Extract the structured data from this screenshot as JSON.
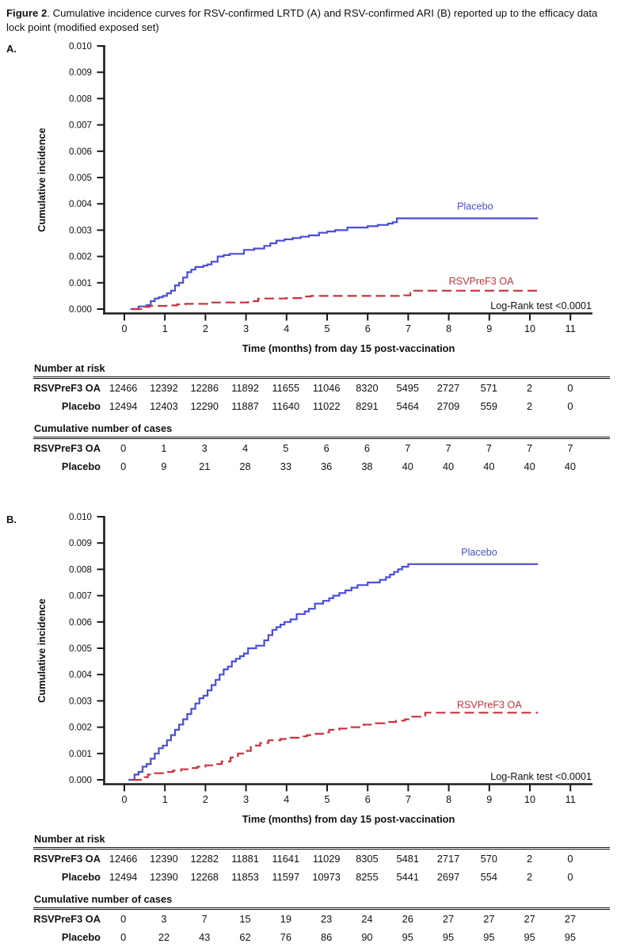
{
  "figure_title": {
    "bold": "Figure 2",
    "rest": ". Cumulative incidence curves for RSV-confirmed LRTD (A) and RSV-confirmed ARI (B) reported up to the efficacy data lock point (modified exposed set)"
  },
  "colors": {
    "placebo_blue": "#4a4ed7",
    "vaccine_red": "#c8323e",
    "axis_black": "#1a1a1a"
  },
  "chart_data": [
    {
      "id": "a",
      "panel_label": "A.",
      "type": "line",
      "subtype": "step-cumulative-incidence",
      "xlabel": "Time (months) from day 15 post-vaccination",
      "ylabel": "Cumulative incidence",
      "xlim": [
        0,
        11
      ],
      "ylim": [
        0,
        0.01
      ],
      "xticks": [
        0,
        1,
        2,
        3,
        4,
        5,
        6,
        7,
        8,
        9,
        10,
        11
      ],
      "yticks": [
        "0.000",
        "0.001",
        "0.002",
        "0.003",
        "0.004",
        "0.005",
        "0.006",
        "0.007",
        "0.008",
        "0.009",
        "0.010"
      ],
      "annotation": "Log-Rank test <0.0001",
      "grid": false,
      "series": [
        {
          "name": "Placebo",
          "style": "solid",
          "color": "#4a4ed7",
          "label_at": {
            "x": 8.65,
            "y": 0.0039
          },
          "steps": [
            [
              0.15,
              0
            ],
            [
              0.35,
              0.0001
            ],
            [
              0.55,
              0.00015
            ],
            [
              0.65,
              0.0003
            ],
            [
              0.75,
              0.0004
            ],
            [
              0.85,
              0.00045
            ],
            [
              0.95,
              0.0005
            ],
            [
              1.05,
              0.0006
            ],
            [
              1.15,
              0.0007
            ],
            [
              1.25,
              0.0009
            ],
            [
              1.35,
              0.001
            ],
            [
              1.45,
              0.0012
            ],
            [
              1.55,
              0.0014
            ],
            [
              1.65,
              0.0015
            ],
            [
              1.75,
              0.0016
            ],
            [
              1.95,
              0.00165
            ],
            [
              2.05,
              0.0017
            ],
            [
              2.15,
              0.0018
            ],
            [
              2.3,
              0.002
            ],
            [
              2.45,
              0.00205
            ],
            [
              2.6,
              0.0021
            ],
            [
              2.95,
              0.00225
            ],
            [
              3.2,
              0.0023
            ],
            [
              3.45,
              0.0024
            ],
            [
              3.6,
              0.0025
            ],
            [
              3.75,
              0.0026
            ],
            [
              3.95,
              0.00265
            ],
            [
              4.15,
              0.0027
            ],
            [
              4.35,
              0.00275
            ],
            [
              4.55,
              0.0028
            ],
            [
              4.8,
              0.0029
            ],
            [
              5.0,
              0.00295
            ],
            [
              5.2,
              0.003
            ],
            [
              5.5,
              0.0031
            ],
            [
              6.0,
              0.00315
            ],
            [
              6.25,
              0.0032
            ],
            [
              6.5,
              0.00325
            ],
            [
              6.62,
              0.0033
            ],
            [
              6.72,
              0.00345
            ],
            [
              10.2,
              0.00345
            ]
          ]
        },
        {
          "name": "RSVPreF3 OA",
          "style": "dashed",
          "color": "#c8323e",
          "label_at": {
            "x": 8.8,
            "y": 0.00105
          },
          "steps": [
            [
              0.2,
              0
            ],
            [
              0.5,
              8e-05
            ],
            [
              0.62,
              0.00012
            ],
            [
              1.1,
              0.00014
            ],
            [
              1.3,
              0.00018
            ],
            [
              1.5,
              0.0002
            ],
            [
              2.1,
              0.00025
            ],
            [
              3.05,
              0.0003
            ],
            [
              3.3,
              0.0004
            ],
            [
              4.0,
              0.00042
            ],
            [
              4.45,
              0.00048
            ],
            [
              4.6,
              0.0005
            ],
            [
              6.9,
              0.00052
            ],
            [
              7.05,
              0.0007
            ],
            [
              10.2,
              0.0007
            ]
          ]
        }
      ],
      "tables": [
        {
          "heading": "Number at risk",
          "rows": [
            {
              "label": "RSVPreF3 OA",
              "values": [
                "12466",
                "12392",
                "12286",
                "11892",
                "11655",
                "11046",
                "8320",
                "5495",
                "2727",
                "571",
                "2",
                "0"
              ]
            },
            {
              "label": "Placebo",
              "values": [
                "12494",
                "12403",
                "12290",
                "11887",
                "11640",
                "11022",
                "8291",
                "5464",
                "2709",
                "559",
                "2",
                "0"
              ]
            }
          ]
        },
        {
          "heading": "Cumulative number of cases",
          "rows": [
            {
              "label": "RSVPreF3 OA",
              "values": [
                "0",
                "1",
                "3",
                "4",
                "5",
                "6",
                "6",
                "7",
                "7",
                "7",
                "7",
                "7"
              ]
            },
            {
              "label": "Placebo",
              "values": [
                "0",
                "9",
                "21",
                "28",
                "33",
                "36",
                "38",
                "40",
                "40",
                "40",
                "40",
                "40"
              ]
            }
          ]
        }
      ]
    },
    {
      "id": "b",
      "panel_label": "B.",
      "type": "line",
      "subtype": "step-cumulative-incidence",
      "xlabel": "Time (months) from day 15 post-vaccination",
      "ylabel": "Cumulative incidence",
      "xlim": [
        0,
        11
      ],
      "ylim": [
        0,
        0.01
      ],
      "xticks": [
        0,
        1,
        2,
        3,
        4,
        5,
        6,
        7,
        8,
        9,
        10,
        11
      ],
      "yticks": [
        "0.000",
        "0.001",
        "0.002",
        "0.003",
        "0.004",
        "0.005",
        "0.006",
        "0.007",
        "0.008",
        "0.009",
        "0.010"
      ],
      "annotation": "Log-Rank test <0.0001",
      "grid": false,
      "series": [
        {
          "name": "Placebo",
          "style": "solid",
          "color": "#4a4ed7",
          "label_at": {
            "x": 8.75,
            "y": 0.00865
          },
          "steps": [
            [
              0.1,
              0
            ],
            [
              0.25,
              0.0002
            ],
            [
              0.35,
              0.0003
            ],
            [
              0.45,
              0.0005
            ],
            [
              0.55,
              0.0006
            ],
            [
              0.65,
              0.0008
            ],
            [
              0.75,
              0.001
            ],
            [
              0.85,
              0.0012
            ],
            [
              0.95,
              0.0013
            ],
            [
              1.05,
              0.0015
            ],
            [
              1.15,
              0.0017
            ],
            [
              1.25,
              0.0019
            ],
            [
              1.35,
              0.0021
            ],
            [
              1.45,
              0.0023
            ],
            [
              1.55,
              0.0025
            ],
            [
              1.65,
              0.0027
            ],
            [
              1.75,
              0.0029
            ],
            [
              1.85,
              0.0031
            ],
            [
              1.95,
              0.0032
            ],
            [
              2.05,
              0.0034
            ],
            [
              2.15,
              0.0036
            ],
            [
              2.25,
              0.0038
            ],
            [
              2.35,
              0.004
            ],
            [
              2.45,
              0.0042
            ],
            [
              2.55,
              0.0043
            ],
            [
              2.65,
              0.0045
            ],
            [
              2.75,
              0.0046
            ],
            [
              2.85,
              0.0047
            ],
            [
              2.95,
              0.0048
            ],
            [
              3.05,
              0.005
            ],
            [
              3.25,
              0.0051
            ],
            [
              3.45,
              0.0053
            ],
            [
              3.55,
              0.0055
            ],
            [
              3.65,
              0.0057
            ],
            [
              3.75,
              0.0058
            ],
            [
              3.85,
              0.0059
            ],
            [
              3.95,
              0.006
            ],
            [
              4.1,
              0.0061
            ],
            [
              4.25,
              0.0063
            ],
            [
              4.45,
              0.0064
            ],
            [
              4.55,
              0.0065
            ],
            [
              4.7,
              0.0067
            ],
            [
              4.9,
              0.0068
            ],
            [
              5.05,
              0.0069
            ],
            [
              5.15,
              0.007
            ],
            [
              5.3,
              0.0071
            ],
            [
              5.45,
              0.0072
            ],
            [
              5.6,
              0.0073
            ],
            [
              5.75,
              0.0074
            ],
            [
              6.0,
              0.0075
            ],
            [
              6.3,
              0.0076
            ],
            [
              6.45,
              0.0077
            ],
            [
              6.55,
              0.0078
            ],
            [
              6.65,
              0.0079
            ],
            [
              6.75,
              0.008
            ],
            [
              6.85,
              0.0081
            ],
            [
              7.0,
              0.0082
            ],
            [
              10.2,
              0.0082
            ]
          ]
        },
        {
          "name": "RSVPreF3 OA",
          "style": "dashed",
          "color": "#c8323e",
          "label_at": {
            "x": 9.0,
            "y": 0.00285
          },
          "steps": [
            [
              0.2,
              0
            ],
            [
              0.5,
              0.0001
            ],
            [
              0.58,
              0.0002
            ],
            [
              0.75,
              0.00025
            ],
            [
              0.95,
              0.0003
            ],
            [
              1.2,
              0.00035
            ],
            [
              1.4,
              0.0004
            ],
            [
              1.6,
              0.00045
            ],
            [
              1.8,
              0.0005
            ],
            [
              2.0,
              0.00055
            ],
            [
              2.2,
              0.0006
            ],
            [
              2.4,
              0.0007
            ],
            [
              2.62,
              0.00085
            ],
            [
              2.8,
              0.001
            ],
            [
              3.0,
              0.0011
            ],
            [
              3.12,
              0.0013
            ],
            [
              3.35,
              0.0014
            ],
            [
              3.55,
              0.0015
            ],
            [
              3.85,
              0.00155
            ],
            [
              4.05,
              0.0016
            ],
            [
              4.3,
              0.00165
            ],
            [
              4.5,
              0.0017
            ],
            [
              4.72,
              0.00175
            ],
            [
              4.9,
              0.0018
            ],
            [
              5.05,
              0.0019
            ],
            [
              5.3,
              0.00195
            ],
            [
              5.5,
              0.002
            ],
            [
              5.9,
              0.0021
            ],
            [
              6.2,
              0.00215
            ],
            [
              6.42,
              0.0022
            ],
            [
              6.7,
              0.00225
            ],
            [
              6.92,
              0.0023
            ],
            [
              7.1,
              0.0024
            ],
            [
              7.3,
              0.00245
            ],
            [
              7.42,
              0.00255
            ],
            [
              10.2,
              0.00255
            ]
          ]
        }
      ],
      "tables": [
        {
          "heading": "Number at risk",
          "rows": [
            {
              "label": "RSVPreF3 OA",
              "values": [
                "12466",
                "12390",
                "12282",
                "11881",
                "11641",
                "11029",
                "8305",
                "5481",
                "2717",
                "570",
                "2",
                "0"
              ]
            },
            {
              "label": "Placebo",
              "values": [
                "12494",
                "12390",
                "12268",
                "11853",
                "11597",
                "10973",
                "8255",
                "5441",
                "2697",
                "554",
                "2",
                "0"
              ]
            }
          ]
        },
        {
          "heading": "Cumulative number of cases",
          "rows": [
            {
              "label": "RSVPreF3 OA",
              "values": [
                "0",
                "3",
                "7",
                "15",
                "19",
                "23",
                "24",
                "26",
                "27",
                "27",
                "27",
                "27"
              ]
            },
            {
              "label": "Placebo",
              "values": [
                "0",
                "22",
                "43",
                "62",
                "76",
                "86",
                "90",
                "95",
                "95",
                "95",
                "95",
                "95"
              ]
            }
          ]
        }
      ]
    }
  ]
}
